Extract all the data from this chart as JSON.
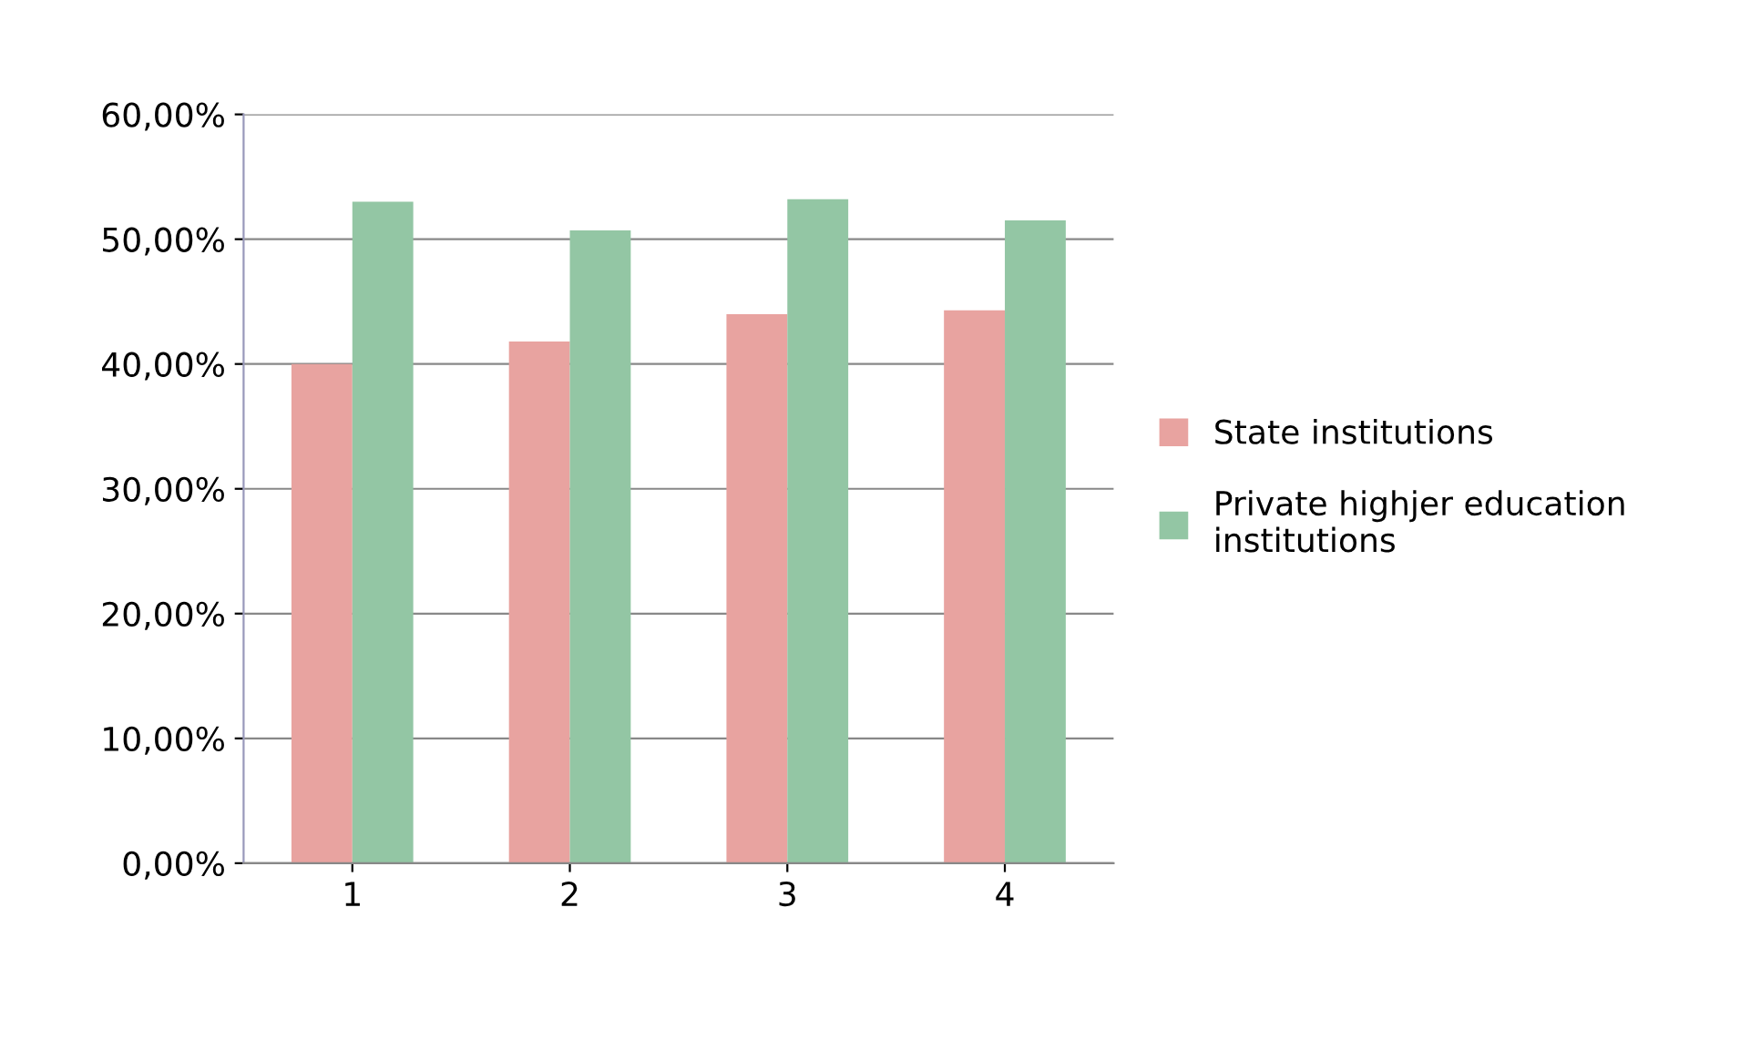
{
  "chart_data": {
    "type": "bar",
    "categories": [
      "1",
      "2",
      "3",
      "4"
    ],
    "series": [
      {
        "name": "State institutions",
        "color": "#e8a3a0",
        "values": [
          40.0,
          41.8,
          44.0,
          44.3
        ]
      },
      {
        "name": "Private highjer education institutions",
        "color": "#93c6a4",
        "values": [
          53.0,
          50.7,
          53.2,
          51.5
        ]
      }
    ],
    "ylim": [
      0,
      60
    ],
    "yticks": [
      {
        "value": 0,
        "label": "0,00%"
      },
      {
        "value": 10,
        "label": "10,00%"
      },
      {
        "value": 20,
        "label": "20,00%"
      },
      {
        "value": 30,
        "label": "30,00%"
      },
      {
        "value": 40,
        "label": "40,00%"
      },
      {
        "value": 50,
        "label": "50,00%"
      },
      {
        "value": 60,
        "label": "60,00%"
      }
    ],
    "grid": "y",
    "legend": "right"
  }
}
